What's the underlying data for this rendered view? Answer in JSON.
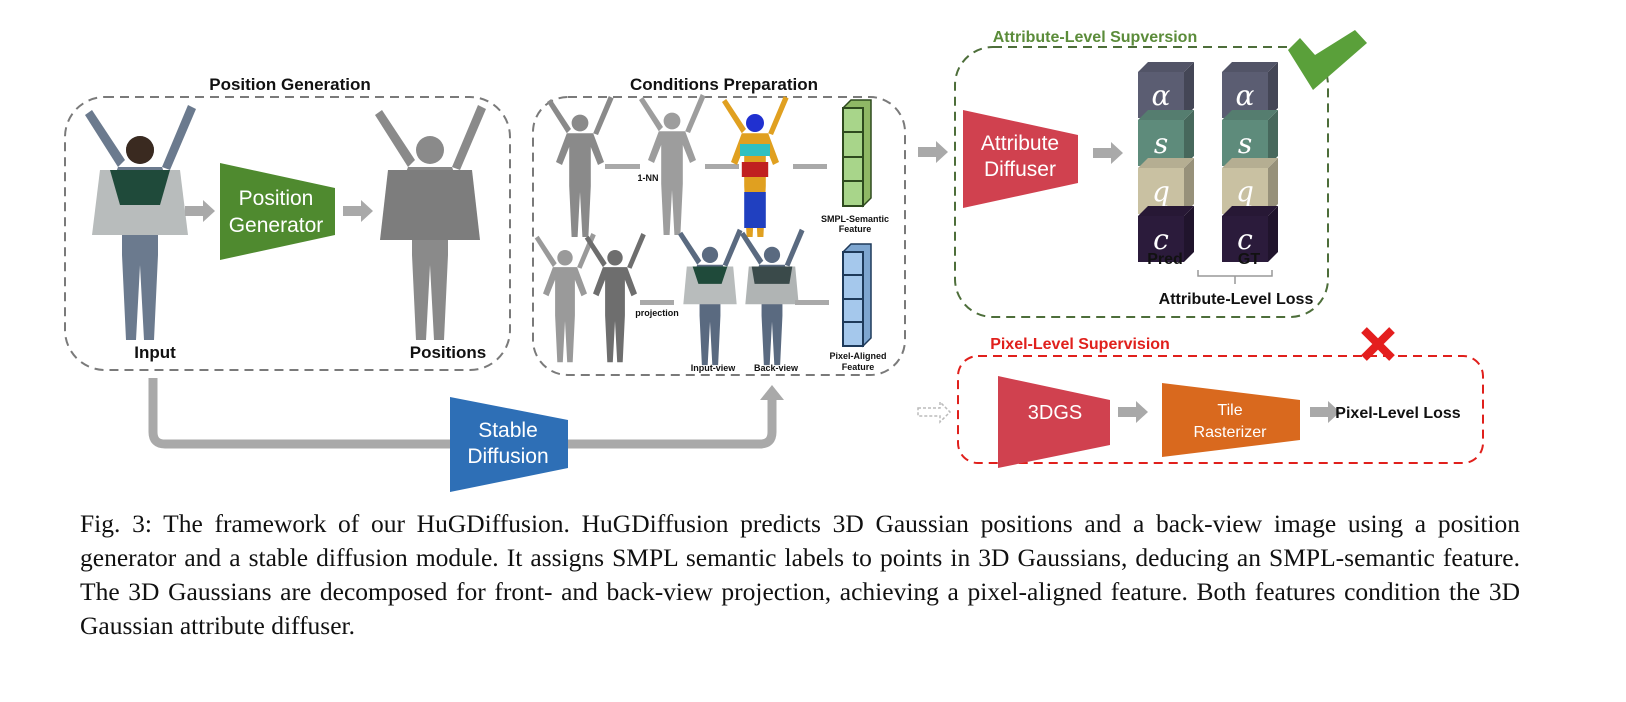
{
  "figure": {
    "position_generation": {
      "title": "Position Generation",
      "generator": [
        "Position",
        "Generator"
      ],
      "input_label": "Input",
      "output_label": "Positions"
    },
    "conditions_preparation": {
      "title": "Conditions Preparation",
      "nn_label": "1-NN",
      "projection_label": "projection",
      "input_view": "Input-view",
      "back_view": "Back-view",
      "smpl_feature": [
        "SMPL-Semantic",
        "Feature"
      ],
      "pixel_feature": [
        "Pixel-Aligned",
        "Feature"
      ]
    },
    "stable_diffusion": [
      "Stable",
      "Diffusion"
    ],
    "attribute_supervision": {
      "title": "Attribute-Level Supversion",
      "diffuser": [
        "Attribute",
        "Diffuser"
      ],
      "attributes": [
        "α",
        "s",
        "q",
        "c"
      ],
      "pred_label": "Pred",
      "gt_label": "GT",
      "loss_label": "Attribute-Level Loss",
      "status_icon": "check-icon"
    },
    "pixel_supervision": {
      "title": "Pixel-Level Supervision",
      "gs_label": "3DGS",
      "rasterizer": [
        "Tile",
        "Rasterizer"
      ],
      "loss_label": "Pixel-Level Loss",
      "status_icon": "cross-icon"
    },
    "colors": {
      "green_block": "#4f8a2f",
      "red_block": "#d0414f",
      "blue_block": "#2e6fb6",
      "orange_block": "#d9691e",
      "attr_title": "#5b8c3a",
      "pixel_title": "#e0201c",
      "alpha": "#5b5d72",
      "s": "#5e8b7b",
      "q": "#c9c1a2",
      "c": "#2b1b3b"
    }
  },
  "caption": "Fig. 3: The framework of our HuGDiffusion. HuGDiffusion predicts 3D Gaussian positions and a back-view image using a position generator and a stable diffusion module. It assigns SMPL semantic labels to points in 3D Gaussians, deducing an SMPL-semantic feature. The 3D Gaussians are decomposed for front- and back-view projection, achieving a pixel-aligned feature. Both features condition the 3D Gaussian attribute diffuser."
}
